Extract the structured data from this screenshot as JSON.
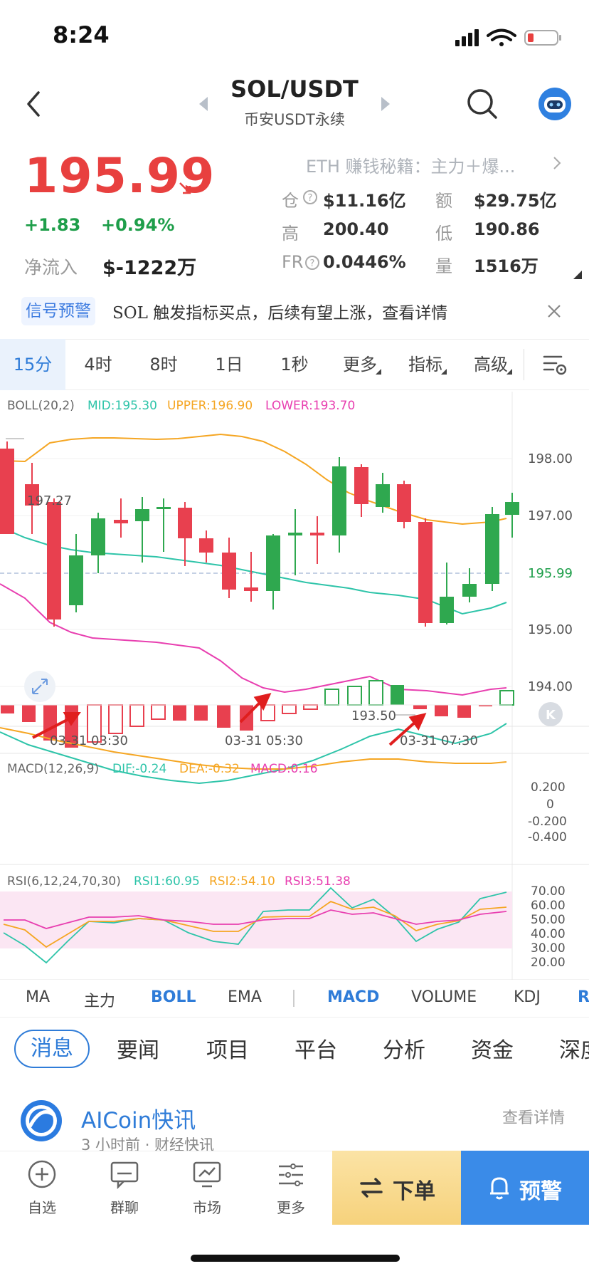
{
  "status_bar": {
    "time": "8:24"
  },
  "header": {
    "pair": "SOL/USDT",
    "exchange": "币安USDT永续"
  },
  "ticker": {
    "price": "195.99",
    "change_abs": "+1.83",
    "change_pct": "+0.94%",
    "netflow_label": "净流入",
    "netflow_value": "$-1222万",
    "promo_text": "ETH 赚钱秘籍：主力＋爆...",
    "stats": {
      "oi_label": "仓",
      "oi_value": "$11.16亿",
      "amount_label": "额",
      "amount_value": "$29.75亿",
      "high_label": "高",
      "high_value": "200.40",
      "low_label": "低",
      "low_value": "190.86",
      "fr_label": "FR",
      "fr_value": "0.0446%",
      "vol_label": "量",
      "vol_value": "1516万"
    }
  },
  "signal": {
    "tag": "信号预警",
    "text": "SOL 触发指标买点，后续有望上涨，查看详情"
  },
  "timeframes": [
    "15分",
    "4时",
    "8时",
    "1日",
    "1秒",
    "更多",
    "指标",
    "高级"
  ],
  "chart": {
    "boll": {
      "name": "BOLL(20,2)",
      "mid": "MID:195.30",
      "upper": "UPPER:196.90",
      "lower": "LOWER:193.70"
    },
    "price_axis": [
      "198.00",
      "197.00",
      "195.99",
      "195.00",
      "194.00"
    ],
    "marker_high": "197.27",
    "marker_low": "193.50",
    "time_labels": [
      "03-31 03:30",
      "03-31 05:30",
      "03-31 07:30"
    ],
    "macd": {
      "name": "MACD(12,26,9)",
      "dif": "DIF:-0.24",
      "dea": "DEA:-0.32",
      "macd": "MACD:0.16",
      "axis": [
        "0.200",
        "0",
        "-0.200",
        "-0.400"
      ]
    },
    "rsi": {
      "name": "RSI(6,12,24,70,30)",
      "rsi1": "RSI1:60.95",
      "rsi2": "RSI2:54.10",
      "rsi3": "RSI3:51.38",
      "axis": [
        "70.00",
        "60.00",
        "50.00",
        "40.00",
        "30.00",
        "20.00"
      ]
    },
    "colors": {
      "up": "#2fa84f",
      "down": "#e8404f",
      "mid": "#2ec4a9",
      "upper": "#f5a623",
      "lower": "#e83fb0"
    }
  },
  "indicator_tabs": [
    "MA",
    "主力",
    "BOLL",
    "EMA",
    "MACD",
    "VOLUME",
    "KDJ",
    "R"
  ],
  "news_tabs": [
    "消息",
    "要闻",
    "项目",
    "平台",
    "分析",
    "资金",
    "深度"
  ],
  "news": {
    "source": "AICoin快讯",
    "meta": "3 小时前 · 财经快讯",
    "more": "查看详情"
  },
  "bottom_nav": {
    "items": [
      "自选",
      "群聊",
      "市场",
      "更多"
    ],
    "order": "下单",
    "alert": "预警"
  }
}
